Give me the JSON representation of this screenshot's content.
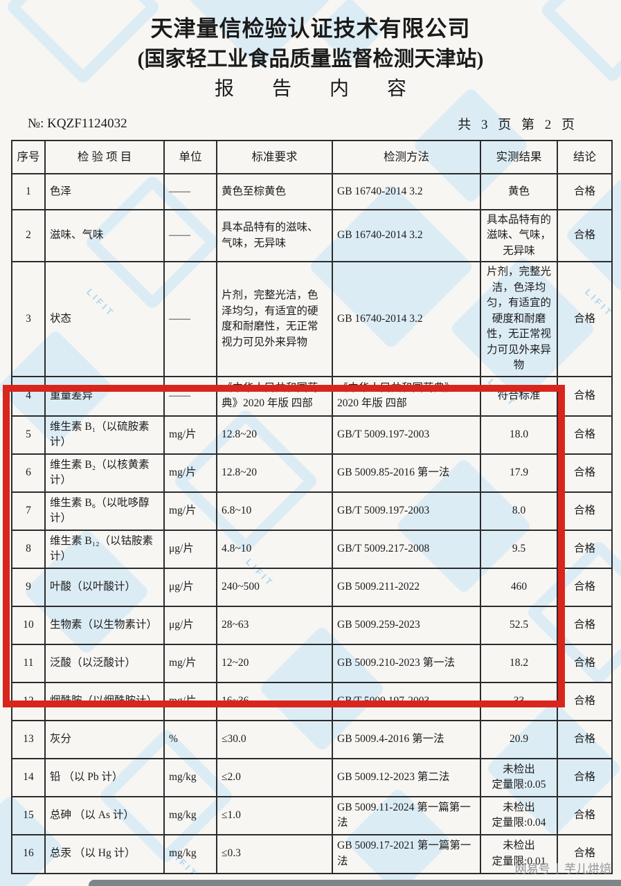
{
  "page": {
    "title1": "天津量信检验认证技术有限公司",
    "title2": "(国家轻工业食品质量监督检测天津站)",
    "title3": "报 告 内 容",
    "report_no": "№: KQZF1124032",
    "page_info": "共 3 页  第 2 页"
  },
  "watermark": {
    "text": "LIFIT",
    "color": "#c7e4f5"
  },
  "highlight": {
    "color": "#d9251c",
    "rows_covered": "5-12"
  },
  "footer": {
    "source": "网易号",
    "author": "芋儿烘焙"
  },
  "table": {
    "headers": [
      "序号",
      "检 验 项 目",
      "单位",
      "标准要求",
      "检测方法",
      "实测结果",
      "结论"
    ],
    "rows": [
      {
        "no": "1",
        "item": "色泽",
        "unit": "——",
        "requirement": "黄色至棕黄色",
        "method": "GB 16740-2014 3.2",
        "result": "黄色",
        "conclusion": "合格"
      },
      {
        "no": "2",
        "item": "滋味、气味",
        "unit": "——",
        "requirement": "具本品特有的滋味、气味，无异味",
        "method": "GB 16740-2014 3.2",
        "result": "具本品特有的\n滋味、气味，\n无异味",
        "conclusion": "合格"
      },
      {
        "no": "3",
        "item": "状态",
        "unit": "——",
        "requirement": "片剂，完整光洁，色泽均匀，有适宜的硬度和耐磨性，无正常视力可见外来异物",
        "method": "GB 16740-2014 3.2",
        "result": "片剂，完整光洁，色泽均匀，有适宜的硬度和耐磨性，无正常视力可见外来异物",
        "conclusion": "合格"
      },
      {
        "no": "4",
        "item": "重量差异",
        "unit": "——",
        "requirement": "《中华人民共和国药典》2020 年版 四部",
        "method": "《中华人民共和国药典》2020 年版 四部",
        "result": "符合标准",
        "conclusion": "合格"
      },
      {
        "no": "5",
        "item": "维生素 B₁（以硫胺素计）",
        "unit": "mg/片",
        "requirement": "12.8~20",
        "method": "GB/T 5009.197-2003",
        "result": "18.0",
        "conclusion": "合格"
      },
      {
        "no": "6",
        "item": "维生素 B₂（以核黄素计）",
        "unit": "mg/片",
        "requirement": "12.8~20",
        "method": "GB 5009.85-2016 第一法",
        "result": "17.9",
        "conclusion": "合格"
      },
      {
        "no": "7",
        "item": "维生素 B₆（以吡哆醇计）",
        "unit": "mg/片",
        "requirement": "6.8~10",
        "method": "GB/T 5009.197-2003",
        "result": "8.0",
        "conclusion": "合格"
      },
      {
        "no": "8",
        "item": "维生素 B₁₂（以钴胺素计）",
        "unit": "μg/片",
        "requirement": "4.8~10",
        "method": "GB/T 5009.217-2008",
        "result": "9.5",
        "conclusion": "合格"
      },
      {
        "no": "9",
        "item": "叶酸（以叶酸计）",
        "unit": "μg/片",
        "requirement": "240~500",
        "method": "GB 5009.211-2022",
        "result": "460",
        "conclusion": "合格"
      },
      {
        "no": "10",
        "item": "生物素（以生物素计）",
        "unit": "μg/片",
        "requirement": "28~63",
        "method": "GB 5009.259-2023",
        "result": "52.5",
        "conclusion": "合格"
      },
      {
        "no": "11",
        "item": "泛酸（以泛酸计）",
        "unit": "mg/片",
        "requirement": "12~20",
        "method": "GB 5009.210-2023 第一法",
        "result": "18.2",
        "conclusion": "合格"
      },
      {
        "no": "12",
        "item": "烟酰胺（以烟酰胺计）",
        "unit": "mg/片",
        "requirement": "16~36",
        "method": "GB/T 5009.197-2003",
        "result": "33",
        "conclusion": "合格"
      },
      {
        "no": "13",
        "item": "灰分",
        "unit": "%",
        "requirement": "≤30.0",
        "method": "GB 5009.4-2016 第一法",
        "result": "20.9",
        "conclusion": "合格"
      },
      {
        "no": "14",
        "item": "铅 （以 Pb 计）",
        "unit": "mg/kg",
        "requirement": "≤2.0",
        "method": "GB 5009.12-2023 第二法",
        "result": "未检出\n定量限:0.05",
        "conclusion": "合格"
      },
      {
        "no": "15",
        "item": "总砷 （以 As 计）",
        "unit": "mg/kg",
        "requirement": "≤1.0",
        "method": "GB 5009.11-2024 第一篇第一法",
        "result": "未检出\n定量限:0.04",
        "conclusion": "合格"
      },
      {
        "no": "16",
        "item": "总汞 （以 Hg 计）",
        "unit": "mg/kg",
        "requirement": "≤0.3",
        "method": "GB 5009.17-2021 第一篇第一法",
        "result": "未检出\n定量限:0.01",
        "conclusion": "合格"
      }
    ]
  }
}
